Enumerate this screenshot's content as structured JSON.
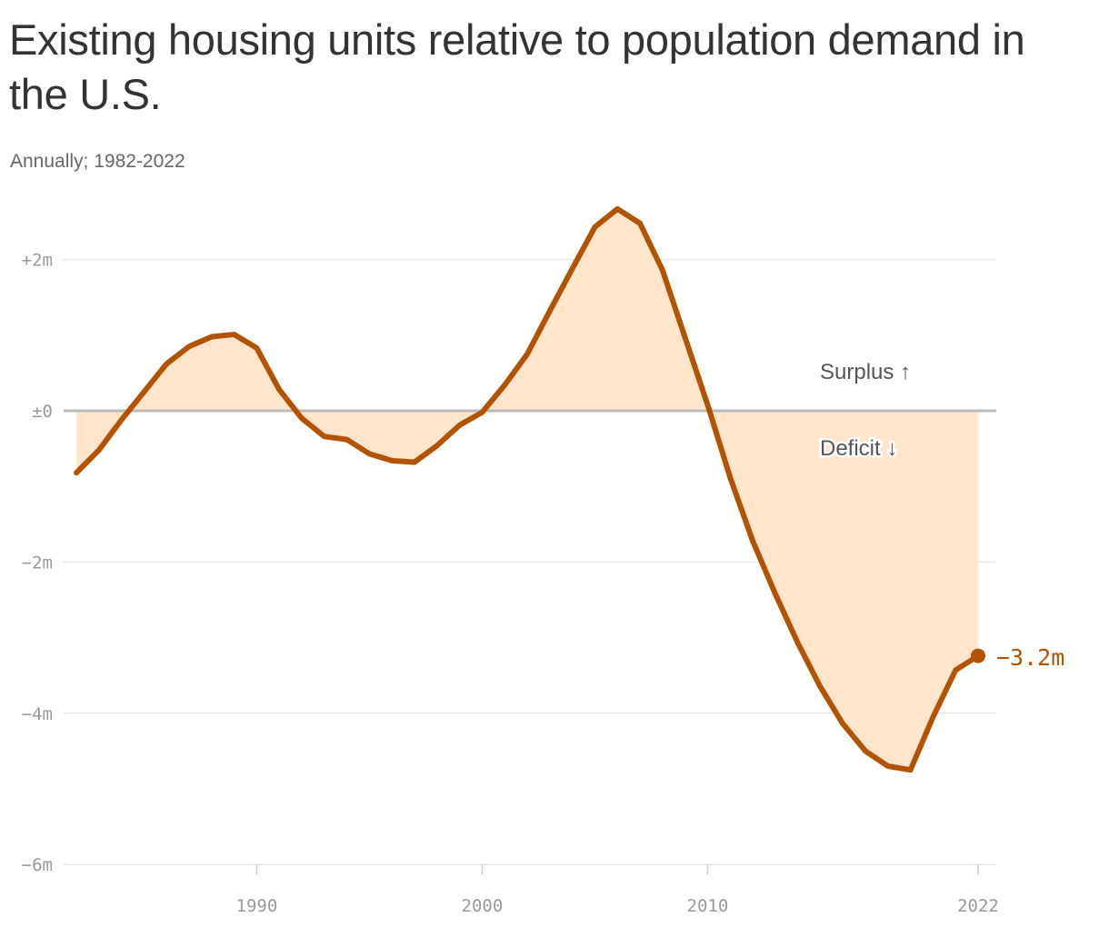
{
  "chart_data": {
    "type": "area",
    "title": "Existing housing units relative to population demand in the U.S.",
    "subtitle": "Annually; 1982-2022",
    "xlabel": "",
    "ylabel": "",
    "xlim": [
      1982,
      2022
    ],
    "ylim": [
      -6,
      2.7
    ],
    "grid": true,
    "x_ticks": [
      1990,
      2000,
      2010,
      2022
    ],
    "x_tick_labels": [
      "1990",
      "2000",
      "2010",
      "2022"
    ],
    "y_ticks": [
      2,
      0,
      -2,
      -4,
      -6
    ],
    "y_tick_labels": [
      "+2m",
      "±0",
      "−2m",
      "−4m",
      "−6m"
    ],
    "annotations": {
      "surplus": "Surplus ↑",
      "deficit": "Deficit ↓"
    },
    "end_label": "−3.2m",
    "colors": {
      "line": "#b35300",
      "fill": "#ffe5cc",
      "grid": "#e6e6e6",
      "zero": "#bbbbbb"
    },
    "series": [
      {
        "x": [
          1982,
          1983,
          1984,
          1985,
          1986,
          1987,
          1988,
          1989,
          1990,
          1991,
          1992,
          1993,
          1994,
          1995,
          1996,
          1997,
          1998,
          1999,
          2000,
          2001,
          2002,
          2003,
          2004,
          2005,
          2006,
          2007,
          2008,
          2009,
          2010,
          2011,
          2012,
          2013,
          2014,
          2015,
          2016,
          2017,
          2018,
          2019,
          2020,
          2021,
          2022
        ],
        "y": [
          -0.82,
          -0.52,
          -0.12,
          0.25,
          0.62,
          0.85,
          0.98,
          1.01,
          0.83,
          0.28,
          -0.1,
          -0.34,
          -0.38,
          -0.57,
          -0.66,
          -0.68,
          -0.46,
          -0.19,
          -0.02,
          0.34,
          0.75,
          1.32,
          1.88,
          2.43,
          2.67,
          2.48,
          1.86,
          0.97,
          0.08,
          -0.88,
          -1.72,
          -2.42,
          -3.07,
          -3.65,
          -4.14,
          -4.5,
          -4.7,
          -4.75,
          -4.05,
          -3.43,
          -3.24
        ]
      }
    ]
  }
}
